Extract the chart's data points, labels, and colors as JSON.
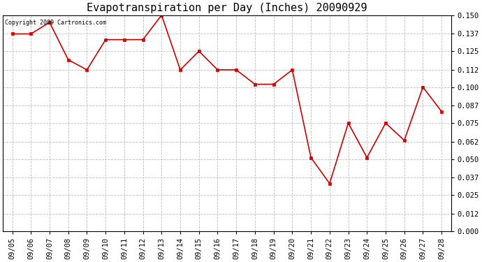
{
  "title": "Evapotranspiration per Day (Inches) 20090929",
  "copyright_text": "Copyright 2009 Cartronics.com",
  "dates": [
    "09/05",
    "09/06",
    "09/07",
    "09/08",
    "09/09",
    "09/10",
    "09/11",
    "09/12",
    "09/13",
    "09/14",
    "09/15",
    "09/16",
    "09/17",
    "09/18",
    "09/19",
    "09/20",
    "09/21",
    "09/22",
    "09/23",
    "09/24",
    "09/25",
    "09/26",
    "09/27",
    "09/28"
  ],
  "values": [
    0.137,
    0.137,
    0.145,
    0.119,
    0.112,
    0.133,
    0.133,
    0.133,
    0.15,
    0.112,
    0.125,
    0.112,
    0.112,
    0.102,
    0.102,
    0.112,
    0.051,
    0.033,
    0.075,
    0.051,
    0.075,
    0.063,
    0.1,
    0.083
  ],
  "ylim": [
    0.0,
    0.15
  ],
  "yticks": [
    0.0,
    0.012,
    0.025,
    0.037,
    0.05,
    0.062,
    0.075,
    0.087,
    0.1,
    0.112,
    0.125,
    0.137,
    0.15
  ],
  "line_color": "#cc0000",
  "marker_color": "#cc0000",
  "background_color": "#ffffff",
  "grid_color": "#bbbbbb",
  "title_fontsize": 11,
  "tick_fontsize": 7.5,
  "copyright_fontsize": 6
}
